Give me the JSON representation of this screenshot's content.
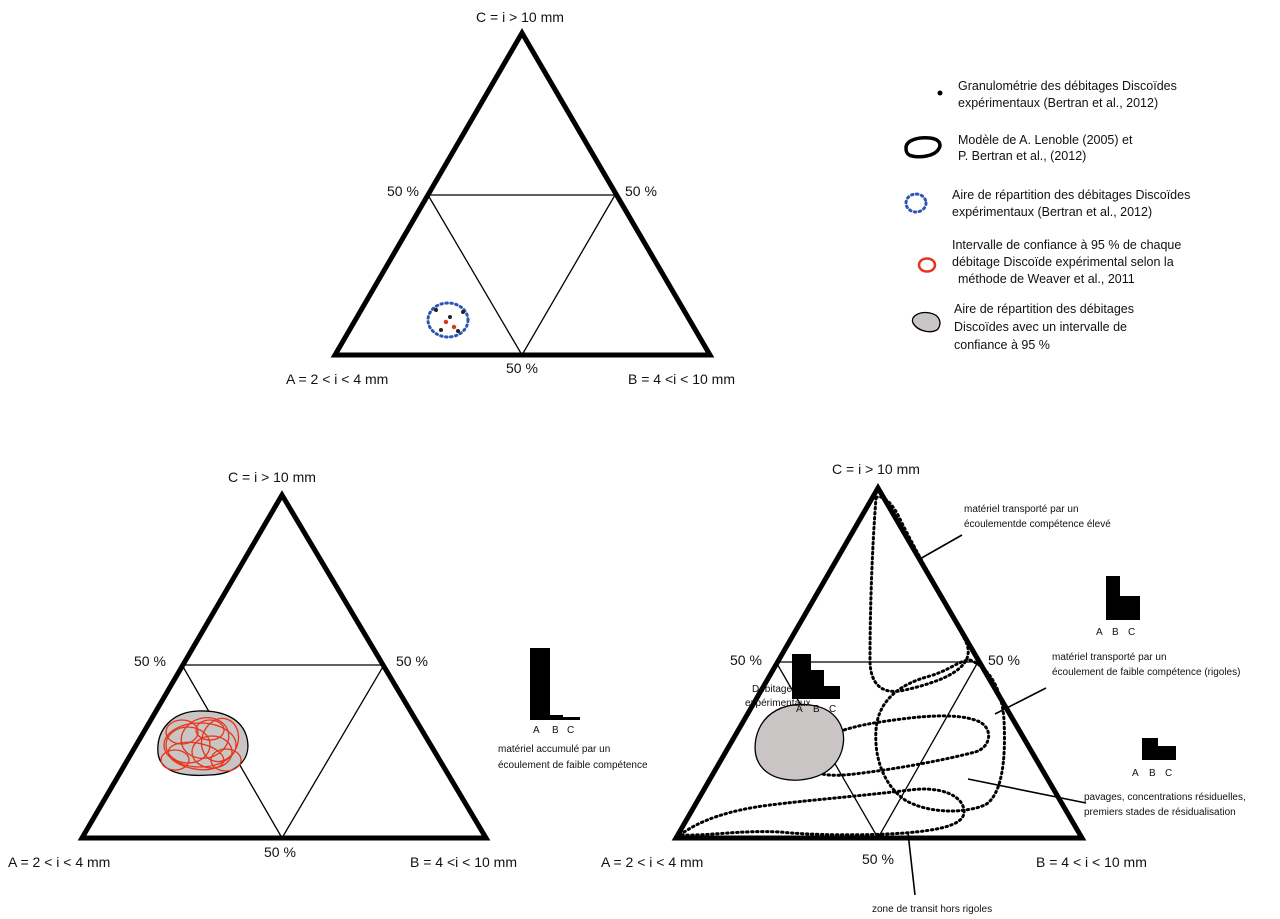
{
  "diagram_top": {
    "apex_label": "C = i > 10 mm",
    "left_label": "A = 2 < i < 4 mm",
    "right_label": "B = 4 <i < 10 mm",
    "left_mid_label": "50 %",
    "right_mid_label": "50 %",
    "bottom_mid_label": "50 %"
  },
  "legend": [
    {
      "symbol": "dot-icon",
      "line1": "Granulométrie des débitages Discoïdes",
      "line2": "expérimentaux (Bertran et al., 2012)",
      "line3": ""
    },
    {
      "symbol": "black-outline-icon",
      "line1": "Modèle de A. Lenoble (2005) et",
      "line2": "P. Bertran et al., (2012)",
      "line3": ""
    },
    {
      "symbol": "blue-dotted-outline-icon",
      "line1": "Aire de répartition des débitages Discoïdes",
      "line2": "expérimentaux (Bertran et al., 2012)",
      "line3": ""
    },
    {
      "symbol": "red-outline-icon",
      "line1": "Intervalle de confiance à 95 % de chaque",
      "line2": "débitage Discoïde expérimental selon la",
      "line3": "méthode de Weaver et al., 2011"
    },
    {
      "symbol": "gray-fill-icon",
      "line1": "Aire de répartition des débitages",
      "line2": "Discoïdes avec un intervalle de",
      "line3": "confiance à 95 %"
    }
  ],
  "diagram_bottom_left": {
    "apex_label": "C = i > 10 mm",
    "left_label": "A = 2 < i < 4 mm",
    "right_label": "B = 4 <i < 10 mm",
    "left_mid_label": "50 %",
    "right_mid_label": "50 %",
    "bottom_mid_label": "50 %",
    "histogram_axis": [
      "A",
      "B",
      "C"
    ],
    "annotation_line1": "matériel accumulé par un",
    "annotation_line2": "écoulement de faible compétence"
  },
  "diagram_bottom_right": {
    "apex_label": "C = i > 10 mm",
    "left_label": "A = 2 < i < 4 mm",
    "right_label": "B =  4 < i < 10 mm",
    "left_mid_label": "50 %",
    "right_mid_label": "50 %",
    "bottom_mid_label": "50 %",
    "gray_zone_line1": "Débitages",
    "gray_zone_line2": "expérimentaux",
    "histogram_axis": [
      "A",
      "B",
      "C"
    ],
    "annotations": {
      "high_competence_line1": "matériel transporté par un",
      "high_competence_line2": "écoulementde compétence élevé",
      "rills_line1": "matériel transporté par un",
      "rills_line2": "écoulement de faible compétence (rigoles)",
      "lag_line1": "pavages, concentrations résiduelles,",
      "lag_line2": "premiers stades de résidualisation",
      "transit": "zone de transit hors rigoles"
    }
  }
}
